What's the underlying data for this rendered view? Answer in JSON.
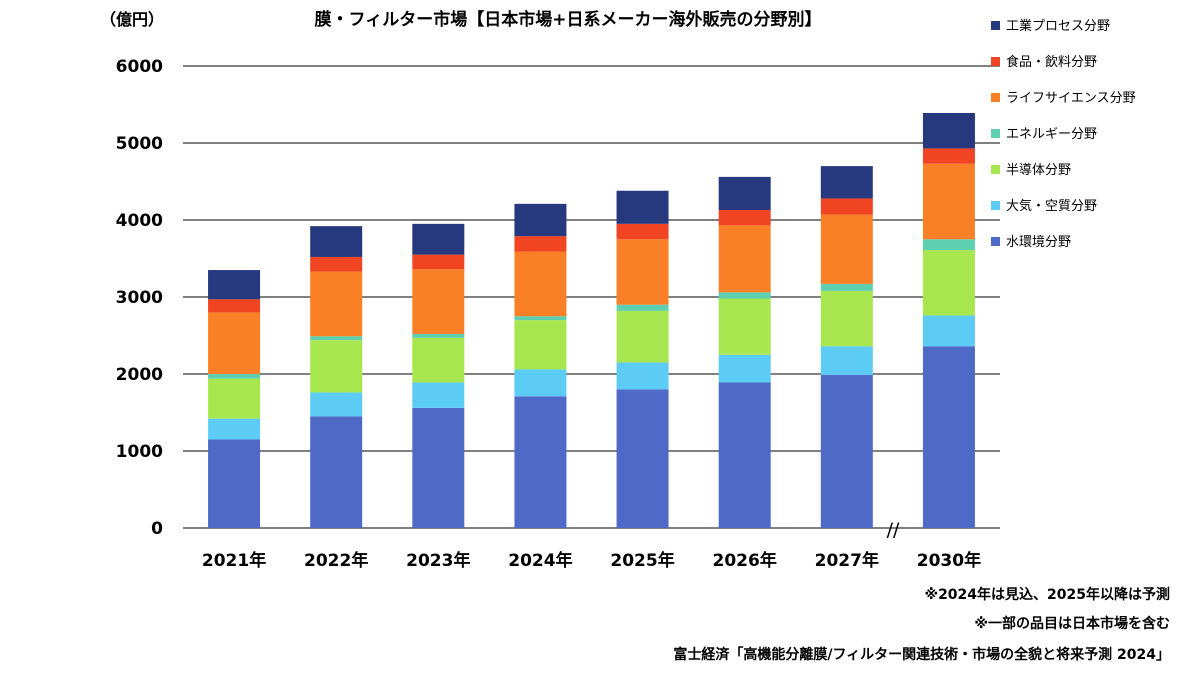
{
  "chart_data": {
    "type": "stacked-bar",
    "title": "膜・フィルター市場【日本市場+日系メーカー海外販売の分野別】",
    "unit_label": "（億円）",
    "categories": [
      "2021年",
      "2022年",
      "2023年",
      "2024年",
      "2025年",
      "2026年",
      "2027年",
      "2030年"
    ],
    "ylim": [
      0,
      6000
    ],
    "yticks": [
      0,
      1000,
      2000,
      3000,
      4000,
      5000,
      6000
    ],
    "grid": true,
    "axis_break_label": "//",
    "legend_position": "right",
    "series": [
      {
        "name": "水環境分野",
        "color": "#4F69C6",
        "values": [
          1150,
          1450,
          1560,
          1710,
          1800,
          1890,
          1990,
          2360
        ]
      },
      {
        "name": "大気・空質分野",
        "color": "#5DCCF5",
        "values": [
          270,
          310,
          330,
          350,
          350,
          360,
          370,
          400
        ]
      },
      {
        "name": "半導体分野",
        "color": "#A8E64F",
        "values": [
          520,
          680,
          580,
          640,
          670,
          730,
          720,
          850
        ]
      },
      {
        "name": "エネルギー分野",
        "color": "#5ECFB1",
        "values": [
          60,
          50,
          50,
          50,
          80,
          80,
          90,
          140
        ]
      },
      {
        "name": "ライフサイエンス分野",
        "color": "#FA8028",
        "values": [
          800,
          840,
          840,
          840,
          850,
          870,
          900,
          980
        ]
      },
      {
        "name": "食品・飲料分野",
        "color": "#F04423",
        "values": [
          170,
          190,
          190,
          200,
          200,
          200,
          210,
          200
        ]
      },
      {
        "name": "工業プロセス分野",
        "color": "#26397F",
        "values": [
          380,
          400,
          400,
          420,
          430,
          430,
          420,
          460
        ]
      }
    ]
  },
  "notes": {
    "forecast": "※2024年は見込、2025年以降は予測",
    "scope": "※一部の品目は日本市場を含む",
    "source": "富士経済「高機能分離膜/フィルター関連技術・市場の全貌と将来予測 2024」"
  }
}
